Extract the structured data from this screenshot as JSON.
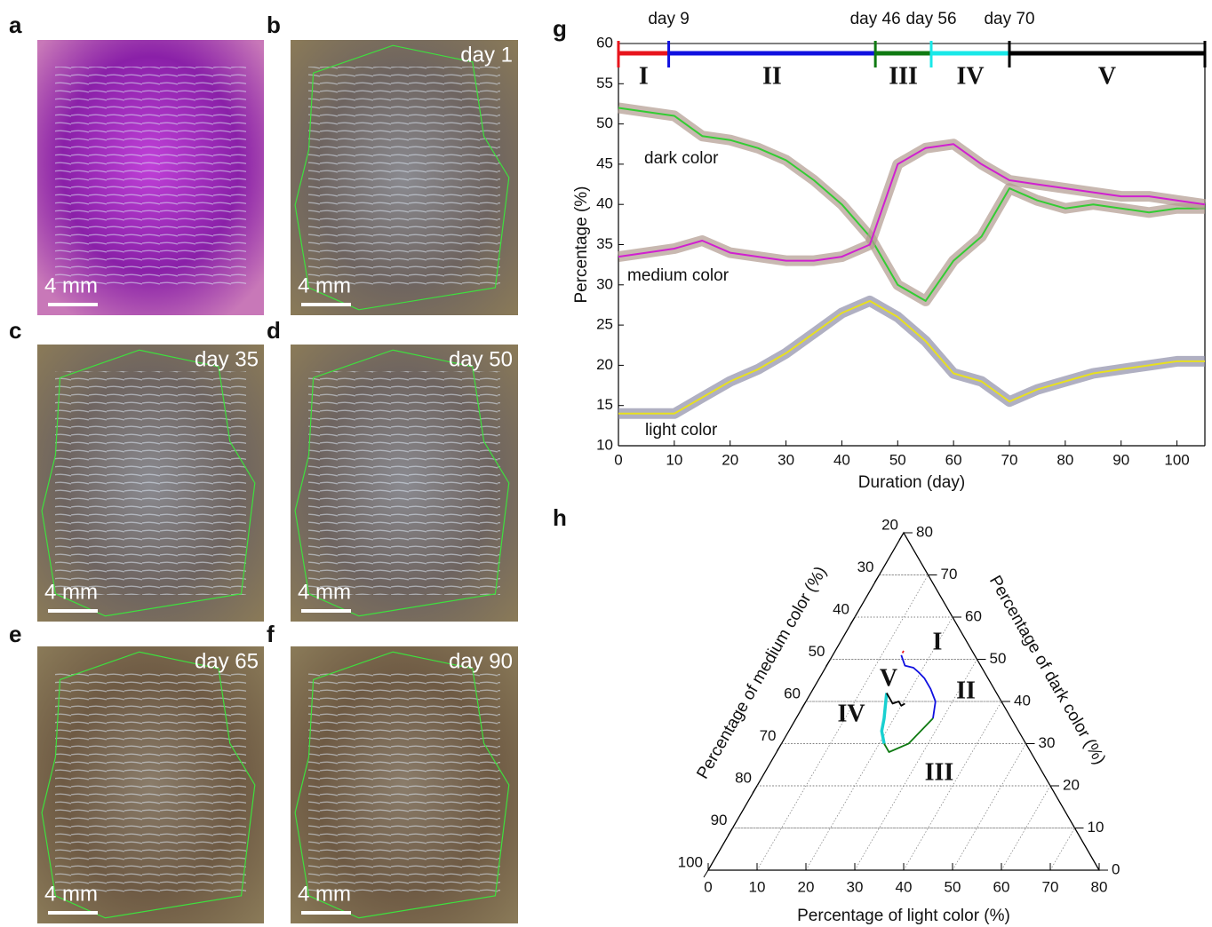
{
  "panels": [
    {
      "letter": "a",
      "scale_bar": "4 mm"
    },
    {
      "letter": "b",
      "day_label": "day 1",
      "scale_bar": "4 mm"
    },
    {
      "letter": "c",
      "day_label": "day 35",
      "scale_bar": "4 mm"
    },
    {
      "letter": "d",
      "day_label": "day 50",
      "scale_bar": "4 mm"
    },
    {
      "letter": "e",
      "day_label": "day 65",
      "scale_bar": "4 mm"
    },
    {
      "letter": "f",
      "day_label": "day 90",
      "scale_bar": "4 mm"
    }
  ],
  "chart_data": [
    {
      "type": "line",
      "panel_letter": "g",
      "x_label": "Duration (day)",
      "y_label": "Percentage (%)",
      "xlim": [
        0,
        105
      ],
      "ylim": [
        10,
        60
      ],
      "xticks": [
        0,
        10,
        20,
        30,
        40,
        50,
        60,
        70,
        80,
        90,
        100
      ],
      "yticks": [
        10,
        15,
        20,
        25,
        30,
        35,
        40,
        45,
        50,
        55,
        60
      ],
      "phases": [
        {
          "name": "I",
          "color": "#e8141c"
        },
        {
          "name": "II",
          "color": "#1010e0"
        },
        {
          "name": "III",
          "color": "#0f7a12"
        },
        {
          "name": "IV",
          "color": "#19e8e8"
        },
        {
          "name": "V",
          "color": "#000000"
        }
      ],
      "phase_boundaries": [
        {
          "value": 9,
          "label": "day 9"
        },
        {
          "value": 46,
          "label": "day 46"
        },
        {
          "value": 56,
          "label": "day 56"
        },
        {
          "value": 70,
          "label": "day 70"
        }
      ],
      "x": [
        0,
        5,
        10,
        15,
        20,
        25,
        30,
        35,
        40,
        45,
        50,
        55,
        60,
        65,
        70,
        75,
        80,
        85,
        90,
        95,
        100,
        105
      ],
      "series": [
        {
          "name": "dark color",
          "color": "#33cc33",
          "values": [
            52,
            51.5,
            51,
            48.5,
            48,
            47,
            45.5,
            43,
            40,
            36,
            30,
            28,
            33,
            36,
            42,
            40.5,
            39.5,
            40,
            39.5,
            39,
            39.5,
            39.5
          ]
        },
        {
          "name": "medium color",
          "color": "#d020d0",
          "values": [
            33.5,
            34,
            34.5,
            35.5,
            34,
            33.5,
            33,
            33,
            33.5,
            35,
            45,
            47,
            47.5,
            45,
            43,
            42.5,
            42,
            41.5,
            41,
            41,
            40.5,
            40
          ]
        },
        {
          "name": "light color",
          "color": "#e8e020",
          "values": [
            14,
            14,
            14,
            16,
            18,
            19.5,
            21.5,
            24,
            26.5,
            28,
            26,
            23,
            19,
            18,
            15.5,
            17,
            18,
            19,
            19.5,
            20,
            20.5,
            20.5
          ]
        }
      ]
    },
    {
      "type": "ternary",
      "panel_letter": "h",
      "bottom_axis": {
        "label": "Percentage of light color (%)",
        "lim": [
          0,
          80
        ],
        "ticks": [
          0,
          10,
          20,
          30,
          40,
          50,
          60,
          70,
          80
        ]
      },
      "left_axis": {
        "label": "Percentage of medium color (%)",
        "lim": [
          20,
          100
        ],
        "ticks": [
          20,
          30,
          40,
          50,
          60,
          70,
          80,
          90,
          100
        ]
      },
      "right_axis": {
        "label": "Percentage of dark color (%)",
        "lim": [
          0,
          80
        ],
        "ticks": [
          0,
          10,
          20,
          30,
          40,
          50,
          60,
          70,
          80
        ]
      },
      "series": [
        {
          "name": "I",
          "color": "#e8141c",
          "light": [
            14,
            14,
            14
          ],
          "dark": [
            52,
            51.5,
            51.5
          ]
        },
        {
          "name": "II",
          "color": "#1010e0",
          "light": [
            14,
            16,
            18,
            19.5,
            21.5,
            24,
            26.5,
            28
          ],
          "dark": [
            51,
            48.5,
            48,
            47,
            45.5,
            43,
            40,
            36
          ]
        },
        {
          "name": "III",
          "color": "#0f7a12",
          "light": [
            28,
            26,
            23,
            21
          ],
          "dark": [
            36,
            30,
            28,
            30
          ]
        },
        {
          "name": "IV",
          "color": "#19d0d0",
          "light": [
            21,
            19,
            18,
            15.5
          ],
          "dark": [
            30,
            33,
            36,
            42
          ]
        },
        {
          "name": "V",
          "color": "#000000",
          "light": [
            15.5,
            17,
            18,
            19,
            19.5,
            20,
            20.5,
            20.5
          ],
          "dark": [
            42,
            40.5,
            39.5,
            40,
            39.5,
            39,
            39.5,
            39.5
          ]
        }
      ]
    }
  ]
}
